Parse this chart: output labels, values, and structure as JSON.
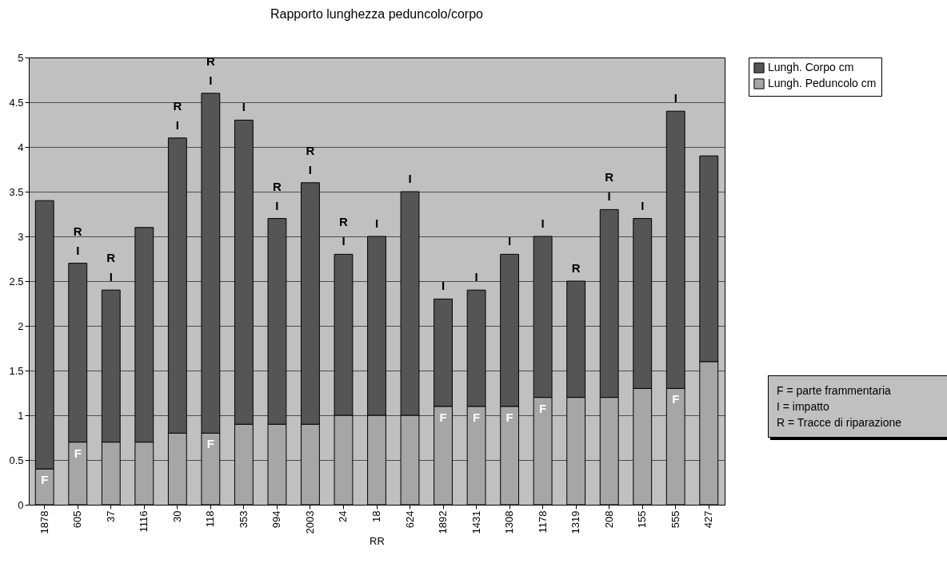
{
  "chart_data": {
    "type": "bar",
    "title": "Rapporto lunghezza peduncolo/corpo",
    "xlabel": "RR",
    "stacked": true,
    "grid": "y",
    "legend": "right",
    "categories": [
      "1878",
      "605",
      "37",
      "1116",
      "30",
      "118",
      "353",
      "994",
      "2003",
      "24",
      "18",
      "624",
      "1892",
      "1431",
      "1308",
      "1178",
      "1319",
      "208",
      "155",
      "555",
      "427"
    ],
    "series": [
      {
        "name": "Lungh. Peduncolo cm",
        "color": "#a6a6a6",
        "values": [
          0.4,
          0.7,
          0.7,
          0.7,
          0.8,
          0.8,
          0.9,
          0.9,
          0.9,
          1.0,
          1.0,
          1.0,
          1.1,
          1.1,
          1.1,
          1.2,
          1.2,
          1.2,
          1.3,
          1.3,
          1.6
        ]
      },
      {
        "name": "Lungh. Corpo cm",
        "color": "#555555",
        "values": [
          3.0,
          2.0,
          1.7,
          2.4,
          3.3,
          3.8,
          3.4,
          2.3,
          2.7,
          1.8,
          2.0,
          2.5,
          1.2,
          1.3,
          1.7,
          1.8,
          1.3,
          2.1,
          1.9,
          3.1,
          2.3
        ]
      }
    ],
    "ylim": [
      0,
      5
    ],
    "yticks": [
      0,
      0.5,
      1,
      1.5,
      2,
      2.5,
      3,
      3.5,
      4,
      4.5,
      5
    ],
    "annotations": [
      {
        "text": "F",
        "x": "1878",
        "y": 0.4
      },
      {
        "text": "F",
        "x": "605",
        "y": 0.7
      },
      {
        "text": "I",
        "x": "605",
        "y": 2.7
      },
      {
        "text": "R",
        "x": "605",
        "y": 2.7
      },
      {
        "text": "I",
        "x": "37",
        "y": 2.4
      },
      {
        "text": "R",
        "x": "37",
        "y": 2.4
      },
      {
        "text": "I",
        "x": "30",
        "y": 4.1
      },
      {
        "text": "R",
        "x": "30",
        "y": 4.1
      },
      {
        "text": "F",
        "x": "118",
        "y": 0.8
      },
      {
        "text": "I",
        "x": "118",
        "y": 4.6
      },
      {
        "text": "R",
        "x": "118",
        "y": 4.6
      },
      {
        "text": "I",
        "x": "353",
        "y": 4.3
      },
      {
        "text": "I",
        "x": "994",
        "y": 3.2
      },
      {
        "text": "R",
        "x": "994",
        "y": 3.2
      },
      {
        "text": "I",
        "x": "2003",
        "y": 3.6
      },
      {
        "text": "R",
        "x": "2003",
        "y": 3.6
      },
      {
        "text": "I",
        "x": "24",
        "y": 2.8
      },
      {
        "text": "R",
        "x": "24",
        "y": 2.8
      },
      {
        "text": "I",
        "x": "18",
        "y": 3.0
      },
      {
        "text": "I",
        "x": "624",
        "y": 3.5
      },
      {
        "text": "F",
        "x": "1892",
        "y": 1.1
      },
      {
        "text": "I",
        "x": "1892",
        "y": 2.3
      },
      {
        "text": "F",
        "x": "1431",
        "y": 1.1
      },
      {
        "text": "I",
        "x": "1431",
        "y": 2.4
      },
      {
        "text": "F",
        "x": "1308",
        "y": 1.1
      },
      {
        "text": "I",
        "x": "1308",
        "y": 2.8
      },
      {
        "text": "F",
        "x": "1178",
        "y": 1.2
      },
      {
        "text": "I",
        "x": "1178",
        "y": 3.0
      },
      {
        "text": "R",
        "x": "1319",
        "y": 2.5
      },
      {
        "text": "I",
        "x": "208",
        "y": 3.3
      },
      {
        "text": "R",
        "x": "208",
        "y": 3.3
      },
      {
        "text": "I",
        "x": "155",
        "y": 3.2
      },
      {
        "text": "F",
        "x": "555",
        "y": 1.3
      },
      {
        "text": "I",
        "x": "555",
        "y": 4.4
      },
      "F = parte frammentaria",
      "I = impatto",
      "R = Tracce di riparazione"
    ]
  }
}
